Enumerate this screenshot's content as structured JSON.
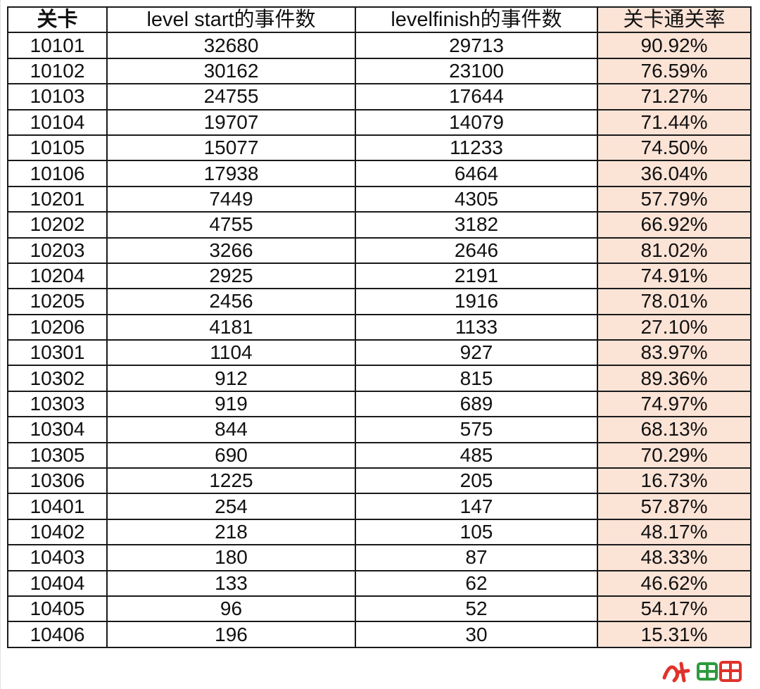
{
  "table": {
    "headers": [
      "关卡",
      "level start的事件数",
      "levelfinish的事件数",
      "关卡通关率"
    ],
    "rows": [
      [
        "10101",
        "32680",
        "29713",
        "90.92%"
      ],
      [
        "10102",
        "30162",
        "23100",
        "76.59%"
      ],
      [
        "10103",
        "24755",
        "17644",
        "71.27%"
      ],
      [
        "10104",
        "19707",
        "14079",
        "71.44%"
      ],
      [
        "10105",
        "15077",
        "11233",
        "74.50%"
      ],
      [
        "10106",
        "17938",
        "6464",
        "36.04%"
      ],
      [
        "10201",
        "7449",
        "4305",
        "57.79%"
      ],
      [
        "10202",
        "4755",
        "3182",
        "66.92%"
      ],
      [
        "10203",
        "3266",
        "2646",
        "81.02%"
      ],
      [
        "10204",
        "2925",
        "2191",
        "74.91%"
      ],
      [
        "10205",
        "2456",
        "1916",
        "78.01%"
      ],
      [
        "10206",
        "4181",
        "1133",
        "27.10%"
      ],
      [
        "10301",
        "1104",
        "927",
        "83.97%"
      ],
      [
        "10302",
        "912",
        "815",
        "89.36%"
      ],
      [
        "10303",
        "919",
        "689",
        "74.97%"
      ],
      [
        "10304",
        "844",
        "575",
        "68.13%"
      ],
      [
        "10305",
        "690",
        "485",
        "70.29%"
      ],
      [
        "10306",
        "1225",
        "205",
        "16.73%"
      ],
      [
        "10401",
        "254",
        "147",
        "57.87%"
      ],
      [
        "10402",
        "218",
        "105",
        "48.17%"
      ],
      [
        "10403",
        "180",
        "87",
        "48.33%"
      ],
      [
        "10404",
        "133",
        "62",
        "46.62%"
      ],
      [
        "10405",
        "96",
        "52",
        "54.17%"
      ],
      [
        "10406",
        "196",
        "30",
        "15.31%"
      ]
    ]
  },
  "colors": {
    "rate_column_fill": "#fbe3d6",
    "border": "#1a1a1a",
    "watermark_red": "#e0322b",
    "watermark_green": "#2e9a3e"
  },
  "watermark": {
    "icon": "logo-watermark-icon"
  }
}
